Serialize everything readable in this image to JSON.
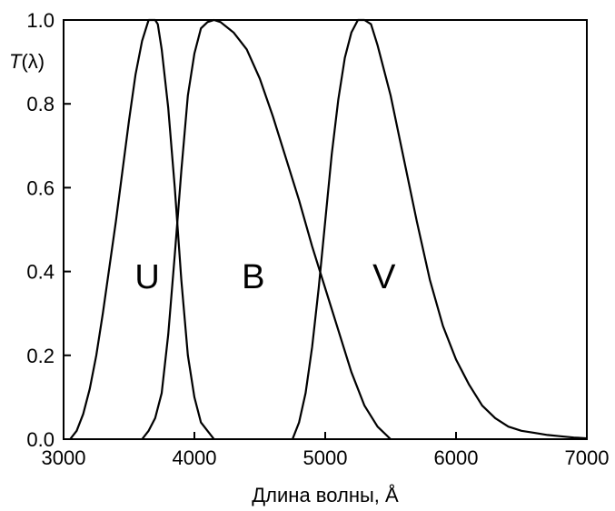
{
  "chart_data": {
    "type": "line",
    "xlabel": "Длина волны, Å",
    "ylabel_prefix": "T",
    "ylabel_suffix": "(λ)",
    "xlim": [
      3000,
      7000
    ],
    "ylim": [
      0.0,
      1.0
    ],
    "x_ticks": [
      3000,
      4000,
      5000,
      6000,
      7000
    ],
    "x_tick_labels": [
      "3000",
      "4000",
      "5000",
      "6000",
      "7000"
    ],
    "y_ticks": [
      0.0,
      0.2,
      0.4,
      0.6,
      0.8,
      1.0
    ],
    "y_tick_labels": [
      "0.0",
      "0.2",
      "0.4",
      "0.6",
      "0.8",
      "1.0"
    ],
    "grid": false,
    "series": [
      {
        "name": "U",
        "label_at": [
          3640,
          0.39
        ],
        "points": [
          [
            3050,
            0.0
          ],
          [
            3100,
            0.02
          ],
          [
            3150,
            0.06
          ],
          [
            3200,
            0.12
          ],
          [
            3250,
            0.2
          ],
          [
            3300,
            0.3
          ],
          [
            3350,
            0.41
          ],
          [
            3400,
            0.52
          ],
          [
            3450,
            0.64
          ],
          [
            3500,
            0.76
          ],
          [
            3550,
            0.87
          ],
          [
            3600,
            0.95
          ],
          [
            3650,
            1.0
          ],
          [
            3700,
            1.0
          ],
          [
            3720,
            0.99
          ],
          [
            3750,
            0.93
          ],
          [
            3800,
            0.79
          ],
          [
            3850,
            0.6
          ],
          [
            3900,
            0.38
          ],
          [
            3950,
            0.2
          ],
          [
            4000,
            0.1
          ],
          [
            4050,
            0.04
          ],
          [
            4100,
            0.02
          ],
          [
            4150,
            0.0
          ]
        ]
      },
      {
        "name": "B",
        "label_at": [
          4450,
          0.39
        ],
        "points": [
          [
            3600,
            0.0
          ],
          [
            3650,
            0.02
          ],
          [
            3700,
            0.05
          ],
          [
            3750,
            0.11
          ],
          [
            3800,
            0.25
          ],
          [
            3850,
            0.44
          ],
          [
            3900,
            0.64
          ],
          [
            3950,
            0.82
          ],
          [
            4000,
            0.92
          ],
          [
            4050,
            0.98
          ],
          [
            4100,
            0.995
          ],
          [
            4150,
            1.0
          ],
          [
            4200,
            0.995
          ],
          [
            4300,
            0.97
          ],
          [
            4400,
            0.93
          ],
          [
            4500,
            0.86
          ],
          [
            4600,
            0.77
          ],
          [
            4700,
            0.67
          ],
          [
            4800,
            0.57
          ],
          [
            4900,
            0.46
          ],
          [
            5000,
            0.36
          ],
          [
            5100,
            0.26
          ],
          [
            5200,
            0.16
          ],
          [
            5300,
            0.08
          ],
          [
            5400,
            0.03
          ],
          [
            5500,
            0.0
          ]
        ]
      },
      {
        "name": "V",
        "label_at": [
          5450,
          0.39
        ],
        "points": [
          [
            4750,
            0.0
          ],
          [
            4800,
            0.04
          ],
          [
            4850,
            0.11
          ],
          [
            4900,
            0.22
          ],
          [
            4950,
            0.36
          ],
          [
            5000,
            0.52
          ],
          [
            5050,
            0.68
          ],
          [
            5100,
            0.81
          ],
          [
            5150,
            0.91
          ],
          [
            5200,
            0.97
          ],
          [
            5250,
            1.0
          ],
          [
            5300,
            1.0
          ],
          [
            5350,
            0.99
          ],
          [
            5400,
            0.94
          ],
          [
            5500,
            0.82
          ],
          [
            5600,
            0.67
          ],
          [
            5700,
            0.52
          ],
          [
            5800,
            0.38
          ],
          [
            5900,
            0.27
          ],
          [
            6000,
            0.19
          ],
          [
            6100,
            0.13
          ],
          [
            6200,
            0.08
          ],
          [
            6300,
            0.05
          ],
          [
            6400,
            0.03
          ],
          [
            6500,
            0.02
          ],
          [
            6600,
            0.015
          ],
          [
            6700,
            0.01
          ],
          [
            6800,
            0.007
          ],
          [
            6900,
            0.004
          ],
          [
            7000,
            0.002
          ]
        ]
      }
    ]
  }
}
